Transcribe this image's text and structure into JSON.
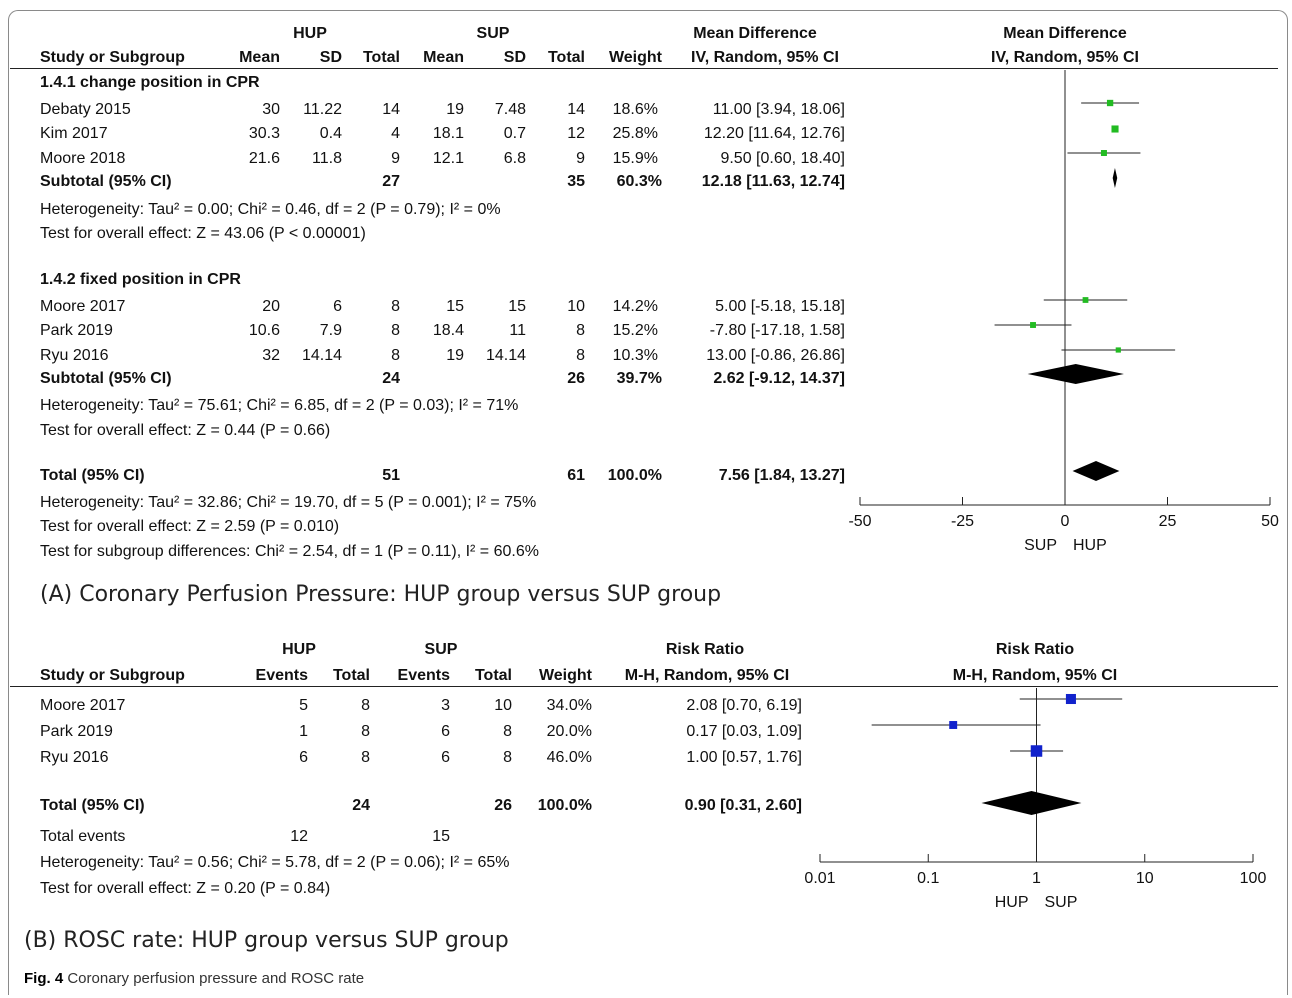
{
  "panel_a": {
    "hdr_group1": "HUP",
    "hdr_group2": "SUP",
    "hdr_effect": "Mean Difference",
    "hdr_plot": "Mean Difference",
    "col_study": "Study or Subgroup",
    "col_mean1": "Mean",
    "col_sd1": "SD",
    "col_total1": "Total",
    "col_mean2": "Mean",
    "col_sd2": "SD",
    "col_total2": "Total",
    "col_weight": "Weight",
    "col_method": "IV, Random, 95% CI",
    "col_method_plot": "IV, Random, 95% CI",
    "sub1": {
      "title": "1.4.1 change position in CPR",
      "rows": [
        {
          "study": "Debaty 2015",
          "mean1": "30",
          "sd1": "11.22",
          "n1": "14",
          "mean2": "19",
          "sd2": "7.48",
          "n2": "14",
          "weight": "18.6%",
          "ci": "11.00 [3.94, 18.06]"
        },
        {
          "study": "Kim 2017",
          "mean1": "30.3",
          "sd1": "0.4",
          "n1": "4",
          "mean2": "18.1",
          "sd2": "0.7",
          "n2": "12",
          "weight": "25.8%",
          "ci": "12.20 [11.64, 12.76]"
        },
        {
          "study": "Moore 2018",
          "mean1": "21.6",
          "sd1": "11.8",
          "n1": "9",
          "mean2": "12.1",
          "sd2": "6.8",
          "n2": "9",
          "weight": "15.9%",
          "ci": "9.50 [0.60, 18.40]"
        }
      ],
      "subtotal": {
        "label": "Subtotal (95% CI)",
        "n1": "27",
        "n2": "35",
        "weight": "60.3%",
        "ci": "12.18 [11.63, 12.74]"
      },
      "het": "Heterogeneity: Tau² = 0.00; Chi² = 0.46, df = 2 (P = 0.79); I² = 0%",
      "test": "Test for overall effect: Z = 43.06 (P < 0.00001)"
    },
    "sub2": {
      "title": "1.4.2 fixed position in CPR",
      "rows": [
        {
          "study": "Moore 2017",
          "mean1": "20",
          "sd1": "6",
          "n1": "8",
          "mean2": "15",
          "sd2": "15",
          "n2": "10",
          "weight": "14.2%",
          "ci": "5.00 [-5.18, 15.18]"
        },
        {
          "study": "Park 2019",
          "mean1": "10.6",
          "sd1": "7.9",
          "n1": "8",
          "mean2": "18.4",
          "sd2": "11",
          "n2": "8",
          "weight": "15.2%",
          "ci": "-7.80 [-17.18, 1.58]"
        },
        {
          "study": "Ryu 2016",
          "mean1": "32",
          "sd1": "14.14",
          "n1": "8",
          "mean2": "19",
          "sd2": "14.14",
          "n2": "8",
          "weight": "10.3%",
          "ci": "13.00 [-0.86, 26.86]"
        }
      ],
      "subtotal": {
        "label": "Subtotal (95% CI)",
        "n1": "24",
        "n2": "26",
        "weight": "39.7%",
        "ci": "2.62 [-9.12, 14.37]"
      },
      "het": "Heterogeneity: Tau² = 75.61; Chi² = 6.85, df = 2 (P = 0.03); I² = 71%",
      "test": "Test for overall effect: Z = 0.44 (P = 0.66)"
    },
    "total": {
      "label": "Total (95% CI)",
      "n1": "51",
      "n2": "61",
      "weight": "100.0%",
      "ci": "7.56 [1.84, 13.27]"
    },
    "total_het": "Heterogeneity: Tau² = 32.86; Chi² = 19.70, df = 5 (P = 0.001); I² = 75%",
    "total_test": "Test for overall effect: Z = 2.59 (P = 0.010)",
    "subgroup_test": "Test for subgroup differences: Chi² = 2.54, df = 1 (P = 0.11), I² = 60.6%",
    "favours_left": "SUP",
    "favours_right": "HUP",
    "caption": "(A) Coronary Perfusion Pressure: HUP group versus SUP group"
  },
  "panel_b": {
    "hdr_group1": "HUP",
    "hdr_group2": "SUP",
    "hdr_effect": "Risk Ratio",
    "hdr_plot": "Risk Ratio",
    "col_study": "Study or Subgroup",
    "col_events1": "Events",
    "col_total1": "Total",
    "col_events2": "Events",
    "col_total2": "Total",
    "col_weight": "Weight",
    "col_method": "M-H, Random, 95% CI",
    "col_method_plot": "M-H, Random, 95% CI",
    "rows": [
      {
        "study": "Moore 2017",
        "e1": "5",
        "n1": "8",
        "e2": "3",
        "n2": "10",
        "weight": "34.0%",
        "ci": "2.08 [0.70, 6.19]"
      },
      {
        "study": "Park 2019",
        "e1": "1",
        "n1": "8",
        "e2": "6",
        "n2": "8",
        "weight": "20.0%",
        "ci": "0.17 [0.03, 1.09]"
      },
      {
        "study": "Ryu 2016",
        "e1": "6",
        "n1": "8",
        "e2": "6",
        "n2": "8",
        "weight": "46.0%",
        "ci": "1.00 [0.57, 1.76]"
      }
    ],
    "total": {
      "label": "Total (95% CI)",
      "n1": "24",
      "n2": "26",
      "weight": "100.0%",
      "ci": "0.90 [0.31, 2.60]"
    },
    "total_events": {
      "label": "Total events",
      "e1": "12",
      "e2": "15"
    },
    "het": "Heterogeneity: Tau² = 0.56; Chi² = 5.78, df = 2 (P = 0.06); I² = 65%",
    "test": "Test for overall effect: Z = 0.20 (P = 0.84)",
    "favours_left": "HUP",
    "favours_right": "SUP",
    "caption": "(B) ROSC rate: HUP group versus SUP group"
  },
  "figure": {
    "label": "Fig. 4",
    "caption": "Coronary perfusion pressure and ROSC rate"
  },
  "chart_data": [
    {
      "type": "scatter",
      "scale": "linear",
      "xlim": [
        -50,
        50
      ],
      "ticks": [
        "-50",
        "-25",
        "0",
        "25",
        "50"
      ],
      "tick_values": [
        -50,
        -25,
        0,
        25,
        50
      ],
      "null_value": 0,
      "marker_color": "#22bb22",
      "diamond_color": "#000000",
      "studies": [
        {
          "name": "Debaty 2015",
          "est": 11.0,
          "lo": 3.94,
          "hi": 18.06,
          "weight": 18.6
        },
        {
          "name": "Kim 2017",
          "est": 12.2,
          "lo": 11.64,
          "hi": 12.76,
          "weight": 25.8
        },
        {
          "name": "Moore 2018",
          "est": 9.5,
          "lo": 0.6,
          "hi": 18.4,
          "weight": 15.9
        },
        {
          "name": "Moore 2017",
          "est": 5.0,
          "lo": -5.18,
          "hi": 15.18,
          "weight": 14.2
        },
        {
          "name": "Park 2019",
          "est": -7.8,
          "lo": -17.18,
          "hi": 1.58,
          "weight": 15.2
        },
        {
          "name": "Ryu 2016",
          "est": 13.0,
          "lo": -0.86,
          "hi": 26.86,
          "weight": 10.3
        }
      ],
      "pooled": [
        {
          "name": "Subtotal 1.4.1",
          "est": 12.18,
          "lo": 11.63,
          "hi": 12.74
        },
        {
          "name": "Subtotal 1.4.2",
          "est": 2.62,
          "lo": -9.12,
          "hi": 14.37
        },
        {
          "name": "Total",
          "est": 7.56,
          "lo": 1.84,
          "hi": 13.27
        }
      ]
    },
    {
      "type": "scatter",
      "scale": "log",
      "xlim": [
        0.01,
        100
      ],
      "ticks": [
        "0.01",
        "0.1",
        "1",
        "10",
        "100"
      ],
      "tick_values": [
        0.01,
        0.1,
        1,
        10,
        100
      ],
      "null_value": 1,
      "marker_color": "#1122cc",
      "diamond_color": "#000000",
      "studies": [
        {
          "name": "Moore 2017",
          "est": 2.08,
          "lo": 0.7,
          "hi": 6.19,
          "weight": 34.0
        },
        {
          "name": "Park 2019",
          "est": 0.17,
          "lo": 0.03,
          "hi": 1.09,
          "weight": 20.0
        },
        {
          "name": "Ryu 2016",
          "est": 1.0,
          "lo": 0.57,
          "hi": 1.76,
          "weight": 46.0
        }
      ],
      "pooled": [
        {
          "name": "Total",
          "est": 0.9,
          "lo": 0.31,
          "hi": 2.6
        }
      ]
    }
  ]
}
